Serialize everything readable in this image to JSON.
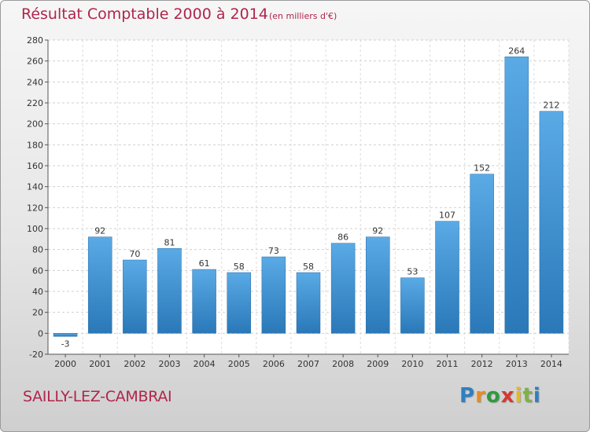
{
  "chart_data": {
    "type": "bar",
    "title": "Résultat Comptable 2000 à 2014",
    "subtitle": "(en milliers d'€)",
    "categories": [
      "2000",
      "2001",
      "2002",
      "2003",
      "2004",
      "2005",
      "2006",
      "2007",
      "2008",
      "2009",
      "2010",
      "2011",
      "2012",
      "2013",
      "2014"
    ],
    "values": [
      -3,
      92,
      70,
      81,
      61,
      58,
      73,
      58,
      86,
      92,
      53,
      107,
      152,
      264,
      212
    ],
    "ylim": [
      -20,
      280
    ],
    "yticks": [
      -20,
      0,
      20,
      40,
      60,
      80,
      100,
      120,
      140,
      160,
      180,
      200,
      220,
      240,
      260,
      280
    ],
    "grid": true,
    "bar_color": "#3d8fd1"
  },
  "footer": {
    "place": "SAILLY-LEZ-CAMBRAI",
    "logo_letters": [
      "P",
      "r",
      "o",
      "x",
      "i",
      "t",
      "i"
    ],
    "logo_colors": [
      "#2f7fc1",
      "#e98a1f",
      "#2f9a3e",
      "#d6382f",
      "#e6b91c",
      "#7cb342",
      "#2f7fc1"
    ]
  }
}
